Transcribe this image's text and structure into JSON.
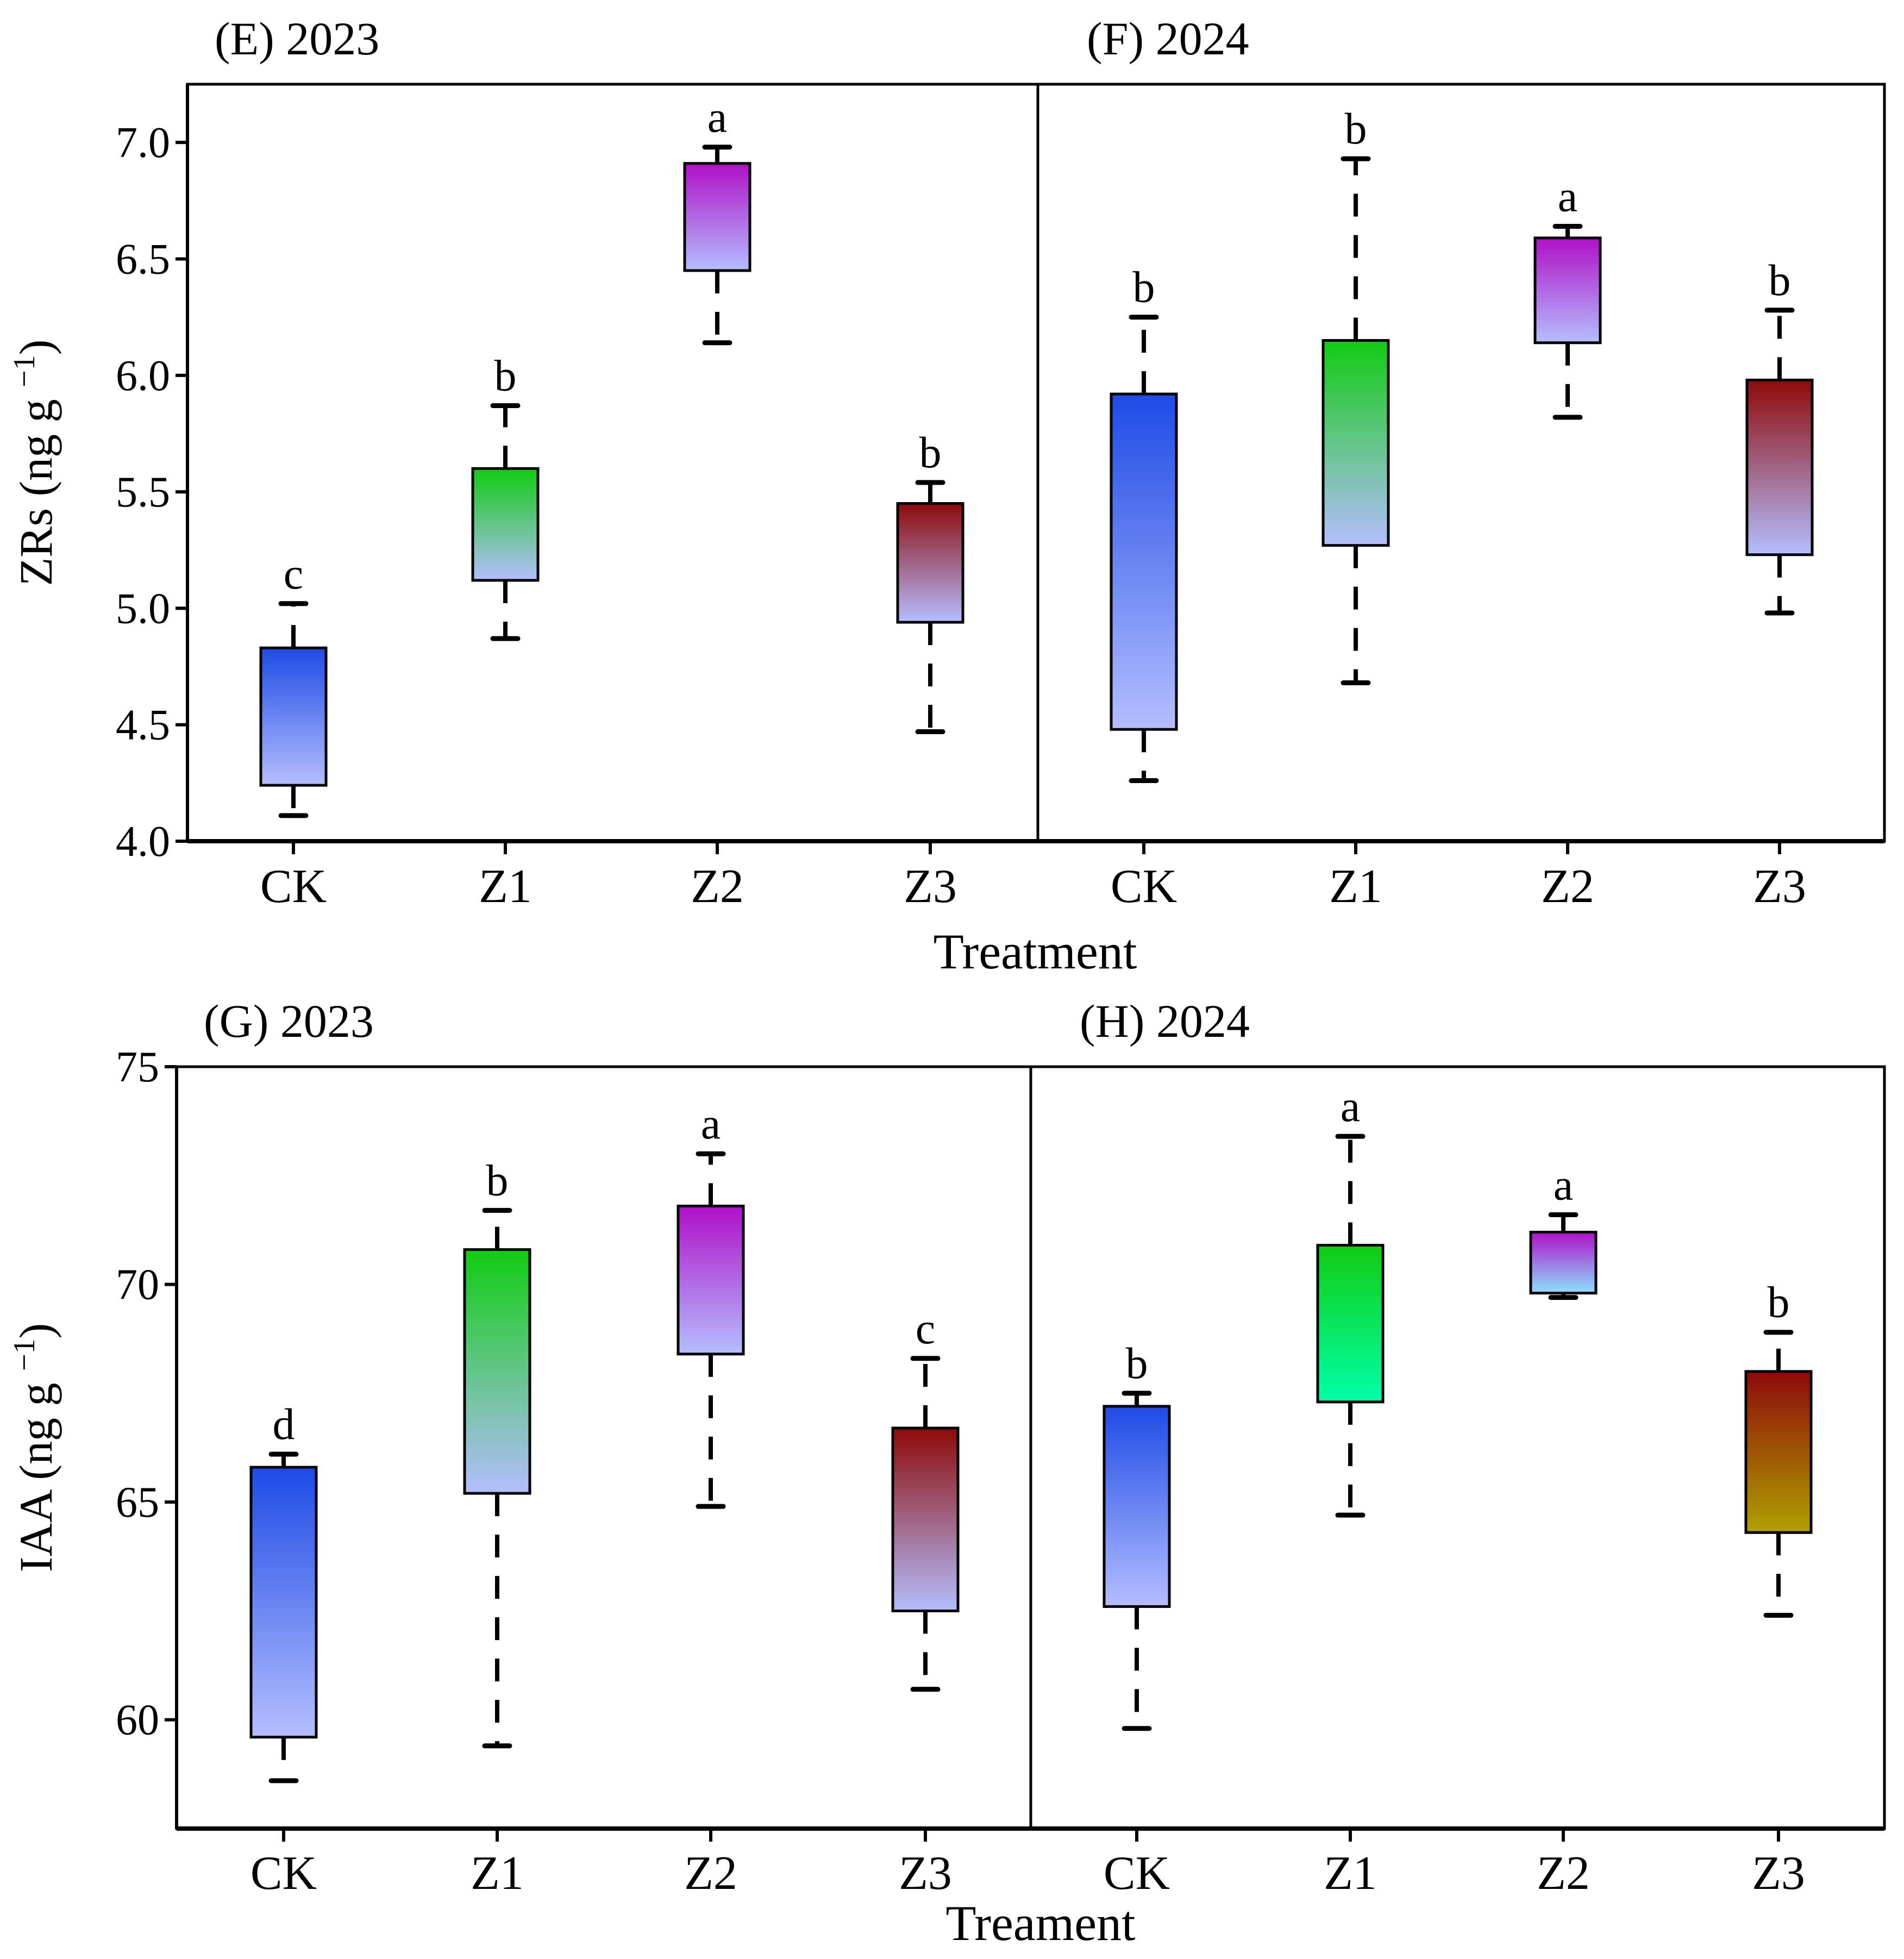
{
  "chart_data": [
    {
      "type": "box",
      "row": "top",
      "ylabel": "ZRs (ng g",
      "ylabel_superscript": "−1",
      "ylabel_close": ")",
      "ylim": [
        4.0,
        7.25
      ],
      "yticks": [
        "4.0",
        "4.5",
        "5.0",
        "5.5",
        "6.0",
        "6.5",
        "7.0"
      ],
      "xlabel": "Treatment",
      "panels": [
        {
          "title": "(E) 2023",
          "categories": [
            "CK",
            "Z1",
            "Z2",
            "Z3"
          ],
          "boxes": [
            {
              "category": "CK",
              "q1": 4.24,
              "q3": 4.83,
              "whisker_low": 4.11,
              "whisker_high": 5.02,
              "label": "c",
              "color_top": "#1e4be6",
              "color_bottom": "#b4beff"
            },
            {
              "category": "Z1",
              "q1": 5.12,
              "q3": 5.6,
              "whisker_low": 4.87,
              "whisker_high": 5.87,
              "label": "b",
              "color_top": "#11cc11",
              "color_bottom": "#b4beff"
            },
            {
              "category": "Z2",
              "q1": 6.45,
              "q3": 6.91,
              "whisker_low": 6.14,
              "whisker_high": 6.98,
              "label": "a",
              "color_top": "#b010c8",
              "color_bottom": "#b4beff"
            },
            {
              "category": "Z3",
              "q1": 4.94,
              "q3": 5.45,
              "whisker_low": 4.47,
              "whisker_high": 5.54,
              "label": "b",
              "color_top": "#8e0a0a",
              "color_bottom": "#b4beff"
            }
          ]
        },
        {
          "title": "(F) 2024",
          "categories": [
            "CK",
            "Z1",
            "Z2",
            "Z3"
          ],
          "boxes": [
            {
              "category": "CK",
              "q1": 4.48,
              "q3": 5.92,
              "whisker_low": 4.26,
              "whisker_high": 6.25,
              "label": "b",
              "color_top": "#1e4be6",
              "color_bottom": "#b4beff"
            },
            {
              "category": "Z1",
              "q1": 5.27,
              "q3": 6.15,
              "whisker_low": 4.68,
              "whisker_high": 6.93,
              "label": "b",
              "color_top": "#11cc11",
              "color_bottom": "#b4beff"
            },
            {
              "category": "Z2",
              "q1": 6.14,
              "q3": 6.59,
              "whisker_low": 5.82,
              "whisker_high": 6.64,
              "label": "a",
              "color_top": "#b010c8",
              "color_bottom": "#b4beff"
            },
            {
              "category": "Z3",
              "q1": 5.23,
              "q3": 5.98,
              "whisker_low": 4.98,
              "whisker_high": 6.28,
              "label": "b",
              "color_top": "#8e0a0a",
              "color_bottom": "#b4beff"
            }
          ]
        }
      ]
    },
    {
      "type": "box",
      "row": "bottom",
      "ylabel": "IAA (ng g",
      "ylabel_superscript": "−1",
      "ylabel_close": ")",
      "ylim": [
        57.5,
        75
      ],
      "yticks": [
        "60",
        "65",
        "70",
        "75"
      ],
      "xlabel": "Treament",
      "panels": [
        {
          "title": "(G) 2023",
          "categories": [
            "CK",
            "Z1",
            "Z2",
            "Z3"
          ],
          "boxes": [
            {
              "category": "CK",
              "q1": 59.6,
              "q3": 65.8,
              "whisker_low": 58.6,
              "whisker_high": 66.1,
              "label": "d",
              "color_top": "#1e4be6",
              "color_bottom": "#b4beff"
            },
            {
              "category": "Z1",
              "q1": 65.2,
              "q3": 70.8,
              "whisker_low": 59.4,
              "whisker_high": 71.7,
              "label": "b",
              "color_top": "#11cc11",
              "color_bottom": "#b4beff"
            },
            {
              "category": "Z2",
              "q1": 68.4,
              "q3": 71.8,
              "whisker_low": 64.9,
              "whisker_high": 73.0,
              "label": "a",
              "color_top": "#b010c8",
              "color_bottom": "#b4beff"
            },
            {
              "category": "Z3",
              "q1": 62.5,
              "q3": 66.7,
              "whisker_low": 60.7,
              "whisker_high": 68.3,
              "label": "c",
              "color_top": "#8e0a0a",
              "color_bottom": "#b4beff"
            }
          ]
        },
        {
          "title": "(H) 2024",
          "categories": [
            "CK",
            "Z1",
            "Z2",
            "Z3"
          ],
          "boxes": [
            {
              "category": "CK",
              "q1": 62.6,
              "q3": 67.2,
              "whisker_low": 59.8,
              "whisker_high": 67.5,
              "label": "b",
              "color_top": "#1e4be6",
              "color_bottom": "#b4beff"
            },
            {
              "category": "Z1",
              "q1": 67.3,
              "q3": 70.9,
              "whisker_low": 64.7,
              "whisker_high": 73.4,
              "label": "a",
              "color_top": "#11cc11",
              "color_bottom": "#00ffaa"
            },
            {
              "category": "Z2",
              "q1": 69.8,
              "q3": 71.2,
              "whisker_low": 69.7,
              "whisker_high": 71.6,
              "label": "a",
              "color_top": "#b010c8",
              "color_bottom": "#8ce0ff"
            },
            {
              "category": "Z3",
              "q1": 64.3,
              "q3": 68.0,
              "whisker_low": 62.4,
              "whisker_high": 68.9,
              "label": "b",
              "color_top": "#8e0a0a",
              "color_bottom": "#b0a000"
            }
          ]
        }
      ]
    }
  ]
}
